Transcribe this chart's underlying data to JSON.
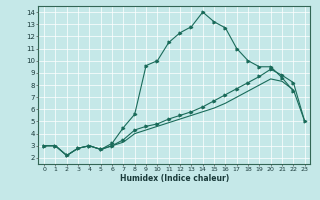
{
  "xlabel": "Humidex (Indice chaleur)",
  "bg_color": "#c5e8e8",
  "line_color": "#1a6b5a",
  "xlim": [
    -0.5,
    23.5
  ],
  "ylim": [
    1.5,
    14.5
  ],
  "xticks": [
    0,
    1,
    2,
    3,
    4,
    5,
    6,
    7,
    8,
    9,
    10,
    11,
    12,
    13,
    14,
    15,
    16,
    17,
    18,
    19,
    20,
    21,
    22,
    23
  ],
  "yticks": [
    2,
    3,
    4,
    5,
    6,
    7,
    8,
    9,
    10,
    11,
    12,
    13,
    14
  ],
  "curve1_x": [
    0,
    1,
    2,
    3,
    4,
    5,
    6,
    7,
    8,
    9,
    10,
    11,
    12,
    13,
    14,
    15,
    16,
    17,
    18,
    19,
    20,
    21,
    22
  ],
  "curve1_y": [
    3.0,
    3.0,
    2.2,
    2.8,
    3.0,
    2.7,
    3.2,
    4.5,
    5.6,
    9.6,
    10.0,
    11.5,
    12.3,
    12.8,
    14.0,
    13.2,
    12.7,
    11.0,
    10.0,
    9.5,
    9.5,
    8.6,
    7.5
  ],
  "curve2_x": [
    0,
    1,
    2,
    3,
    4,
    5,
    6,
    7,
    8,
    9,
    10,
    11,
    12,
    13,
    14,
    15,
    16,
    17,
    18,
    19,
    20,
    21,
    22,
    23
  ],
  "curve2_y": [
    3.0,
    3.0,
    2.2,
    2.8,
    3.0,
    2.7,
    3.0,
    3.5,
    4.3,
    4.6,
    4.8,
    5.2,
    5.5,
    5.8,
    6.2,
    6.7,
    7.2,
    7.7,
    8.2,
    8.7,
    9.3,
    8.8,
    8.2,
    5.0
  ],
  "curve3_x": [
    0,
    1,
    2,
    3,
    4,
    5,
    6,
    7,
    8,
    9,
    10,
    11,
    12,
    13,
    14,
    15,
    16,
    17,
    18,
    19,
    20,
    21,
    22,
    23
  ],
  "curve3_y": [
    3.0,
    3.0,
    2.2,
    2.8,
    3.0,
    2.7,
    3.0,
    3.3,
    4.0,
    4.3,
    4.6,
    4.9,
    5.2,
    5.5,
    5.8,
    6.1,
    6.5,
    7.0,
    7.5,
    8.0,
    8.5,
    8.3,
    7.6,
    5.0
  ],
  "marker_x1": [
    0,
    1,
    2,
    3,
    4,
    5,
    6,
    7,
    8,
    9,
    10,
    11,
    12,
    13,
    14,
    15,
    16,
    17,
    18,
    19,
    20,
    21,
    22
  ],
  "marker_y1": [
    3.0,
    3.0,
    2.2,
    2.8,
    3.0,
    2.7,
    3.2,
    4.5,
    5.6,
    9.6,
    10.0,
    11.5,
    12.3,
    12.8,
    14.0,
    13.2,
    12.7,
    11.0,
    10.0,
    9.5,
    9.5,
    8.6,
    7.5
  ],
  "marker_x2": [
    0,
    1,
    2,
    3,
    4,
    5,
    6,
    7,
    8,
    9,
    10,
    11,
    12,
    13,
    14,
    15,
    16,
    17,
    18,
    19,
    20,
    21,
    22,
    23
  ],
  "marker_y2": [
    3.0,
    3.0,
    2.2,
    2.8,
    3.0,
    2.7,
    3.0,
    3.5,
    4.3,
    4.6,
    4.8,
    5.2,
    5.5,
    5.8,
    6.2,
    6.7,
    7.2,
    7.7,
    8.2,
    8.7,
    9.3,
    8.8,
    8.2,
    5.0
  ]
}
